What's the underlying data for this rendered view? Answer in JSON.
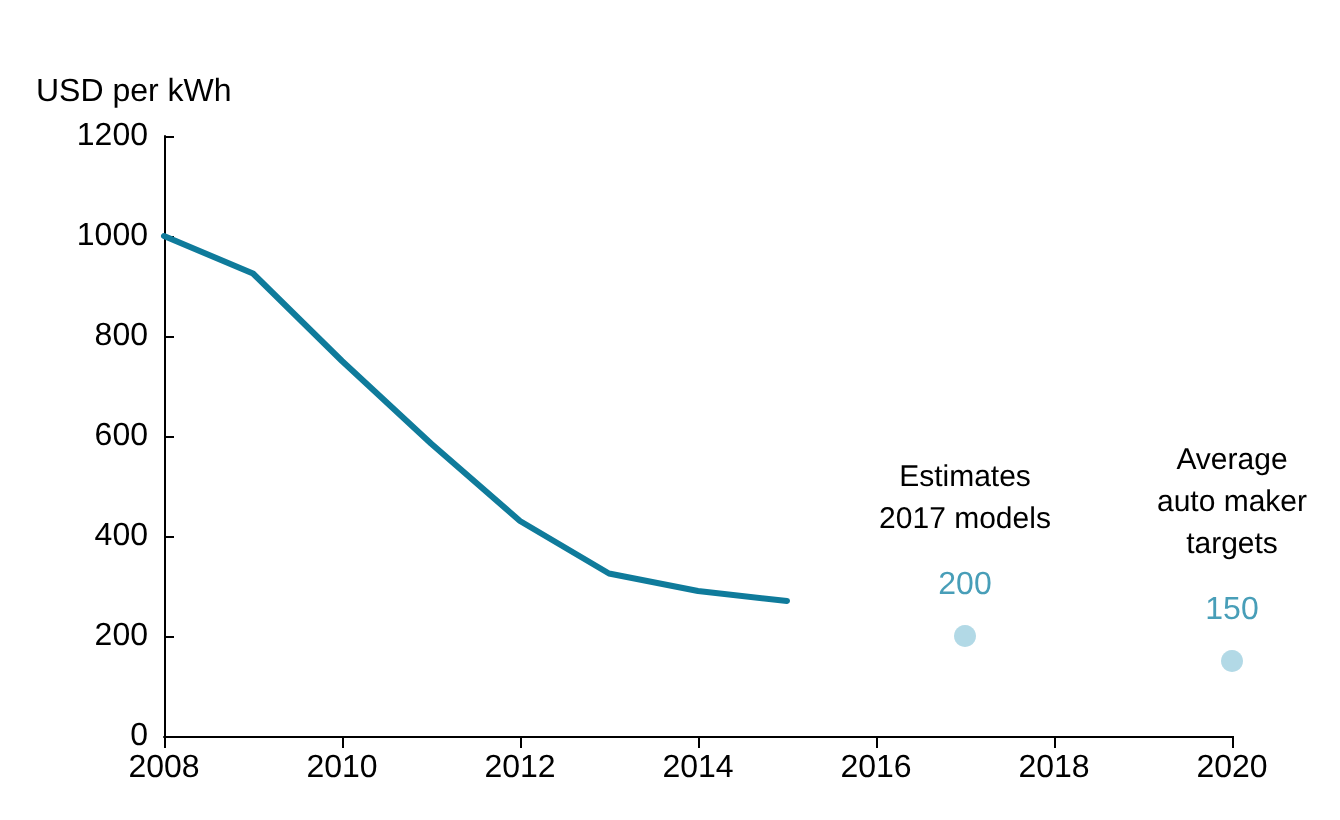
{
  "chart_data": {
    "type": "line",
    "ylabel": "USD per kWh",
    "xlim": [
      2008,
      2020
    ],
    "xticks": [
      2008,
      2010,
      2012,
      2014,
      2016,
      2018,
      2020
    ],
    "ylim": [
      0,
      1200
    ],
    "yticks": [
      0,
      200,
      400,
      600,
      800,
      1000,
      1200
    ],
    "grid": false,
    "marker": "none",
    "line_style": "solid",
    "series": [
      {
        "color": "#0f7b9b",
        "x": [
          2008,
          2009,
          2010,
          2011,
          2012,
          2013,
          2014,
          2015
        ],
        "values": [
          1000,
          925,
          750,
          585,
          430,
          325,
          290,
          270
        ]
      },
      {
        "type": "scatter",
        "color": "#9fd0e0",
        "x": [
          2017,
          2020
        ],
        "values": [
          200,
          150
        ],
        "value_labels": [
          "200",
          "150"
        ],
        "marker": "circle"
      }
    ],
    "annotations": [
      "Estimates\n2017 models",
      "Average\nauto maker\ntargets"
    ]
  }
}
